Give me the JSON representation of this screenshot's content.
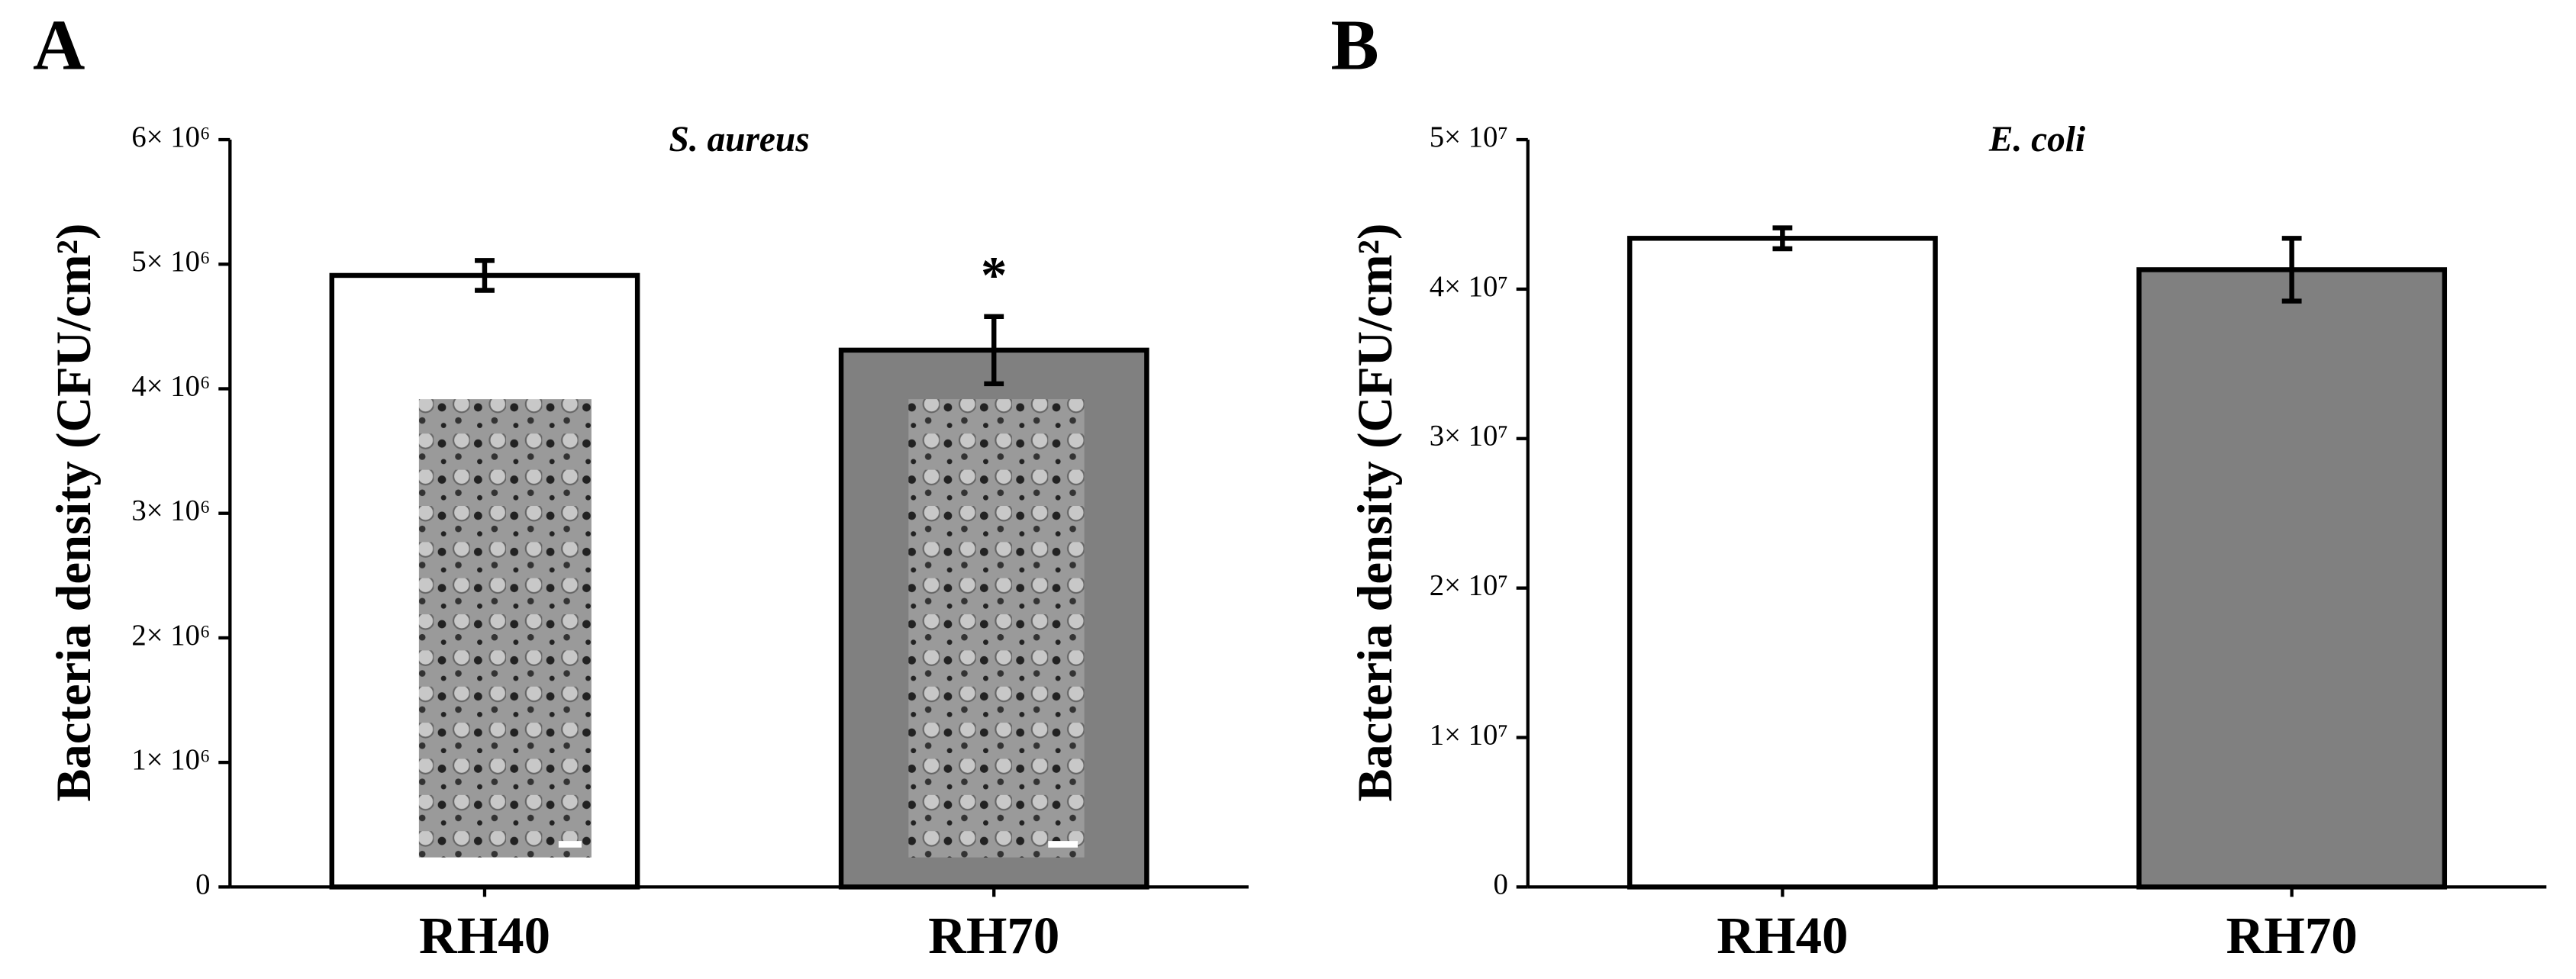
{
  "chart_data": [
    {
      "type": "bar",
      "panel_label": "A",
      "title": "S. aureus",
      "y_label": "Bacteria density (CFU/cm²)",
      "categories": [
        "RH40",
        "RH70"
      ],
      "values": [
        4910000,
        4310000
      ],
      "errors": [
        120000,
        270000
      ],
      "colors": [
        "#ffffff",
        "#808080"
      ],
      "annotation": "*",
      "ylim": [
        0,
        6000000
      ],
      "yticks": [
        0,
        {
          "value": 1000000,
          "label": "1× 10⁶"
        },
        {
          "value": 2000000,
          "label": "2× 10⁶"
        },
        {
          "value": 3000000,
          "label": "3× 10⁶"
        },
        {
          "value": 4000000,
          "label": "4× 10⁶"
        },
        {
          "value": 5000000,
          "label": "5× 10⁶"
        },
        {
          "value": 6000000,
          "label": "6× 10⁶"
        }
      ]
    },
    {
      "type": "bar",
      "panel_label": "B",
      "title": "E. coli",
      "y_label": "Bacteria density (CFU/cm²)",
      "categories": [
        "RH40",
        "RH70"
      ],
      "values": [
        43400000,
        41300000
      ],
      "errors": [
        700000,
        2100000
      ],
      "colors": [
        "#ffffff",
        "#808080"
      ],
      "ylim": [
        0,
        50000000
      ],
      "yticks": [
        0,
        {
          "value": 10000000,
          "label": "1× 10⁷"
        },
        {
          "value": 20000000,
          "label": "2× 10⁷"
        },
        {
          "value": 30000000,
          "label": "3× 10⁷"
        },
        {
          "value": 40000000,
          "label": "4× 10⁷"
        },
        {
          "value": 50000000,
          "label": "5× 10⁷"
        }
      ]
    }
  ]
}
